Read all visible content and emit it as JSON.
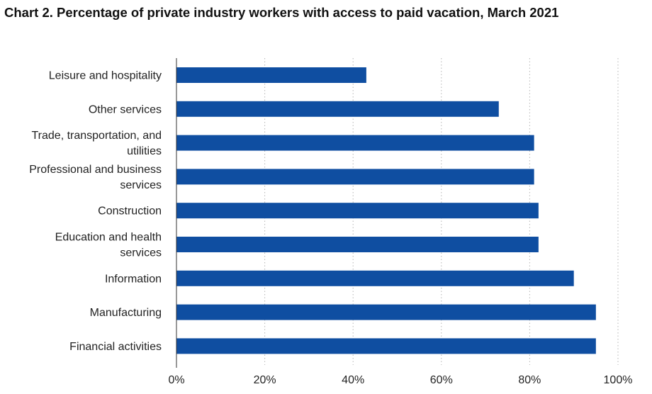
{
  "chart_data": {
    "type": "bar",
    "orientation": "horizontal",
    "title": "Chart 2. Percentage of private industry workers with access to paid vacation, March 2021",
    "categories": [
      [
        "Leisure and hospitality"
      ],
      [
        "Other services"
      ],
      [
        "Trade, transportation, and",
        "utilities"
      ],
      [
        "Professional and business",
        "services"
      ],
      [
        "Construction"
      ],
      [
        "Education and health",
        "services"
      ],
      [
        "Information"
      ],
      [
        "Manufacturing"
      ],
      [
        "Financial activities"
      ]
    ],
    "values": [
      43,
      73,
      81,
      81,
      82,
      82,
      90,
      95,
      95
    ],
    "xlim": [
      0,
      100
    ],
    "xticks": [
      0,
      20,
      40,
      60,
      80,
      100
    ],
    "xtick_labels": [
      "0%",
      "20%",
      "40%",
      "60%",
      "80%",
      "100%"
    ],
    "grid": "vertical dotted",
    "bar_color": "#0f4ea1"
  }
}
